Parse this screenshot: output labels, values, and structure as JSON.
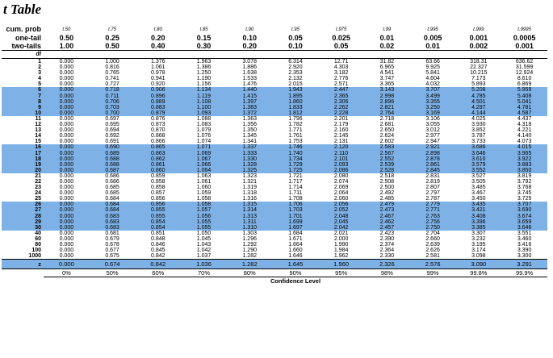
{
  "title": "t Table",
  "row_labels": {
    "cum_prob": "cum. prob",
    "one_tail": "one-tail",
    "two_tails": "two-tails",
    "df": "df",
    "z": "z"
  },
  "subscript_headers": [
    "t.50",
    "t.75",
    "t.80",
    "t.85",
    "t.90",
    "t.95",
    "t.975",
    "t.99",
    "t.995",
    "t.999",
    "t.9995"
  ],
  "one_tail": [
    "0.50",
    "0.25",
    "0.20",
    "0.15",
    "0.10",
    "0.05",
    "0.025",
    "0.01",
    "0.005",
    "0.001",
    "0.0005"
  ],
  "two_tails": [
    "1.00",
    "0.50",
    "0.40",
    "0.30",
    "0.20",
    "0.10",
    "0.05",
    "0.02",
    "0.01",
    "0.002",
    "0.001"
  ],
  "rows": [
    {
      "df": "1",
      "v": [
        "0.000",
        "1.000",
        "1.376",
        "1.963",
        "3.078",
        "6.314",
        "12.71",
        "31.82",
        "63.66",
        "318.31",
        "636.62"
      ]
    },
    {
      "df": "2",
      "v": [
        "0.000",
        "0.816",
        "1.061",
        "1.386",
        "1.886",
        "2.920",
        "4.303",
        "6.965",
        "9.925",
        "22.327",
        "31.599"
      ]
    },
    {
      "df": "3",
      "v": [
        "0.000",
        "0.765",
        "0.978",
        "1.250",
        "1.638",
        "2.353",
        "3.182",
        "4.541",
        "5.841",
        "10.215",
        "12.924"
      ]
    },
    {
      "df": "4",
      "v": [
        "0.000",
        "0.741",
        "0.941",
        "1.190",
        "1.533",
        "2.132",
        "2.776",
        "3.747",
        "4.604",
        "7.173",
        "8.610"
      ]
    },
    {
      "df": "5",
      "v": [
        "0.000",
        "0.727",
        "0.920",
        "1.156",
        "1.476",
        "2.015",
        "2.571",
        "3.365",
        "4.032",
        "5.893",
        "6.869"
      ]
    },
    {
      "df": "6",
      "v": [
        "0.000",
        "0.718",
        "0.906",
        "1.134",
        "1.440",
        "1.943",
        "2.447",
        "3.143",
        "3.707",
        "5.208",
        "5.959"
      ]
    },
    {
      "df": "7",
      "v": [
        "0.000",
        "0.711",
        "0.896",
        "1.119",
        "1.415",
        "1.895",
        "2.365",
        "2.998",
        "3.499",
        "4.785",
        "5.408"
      ]
    },
    {
      "df": "8",
      "v": [
        "0.000",
        "0.706",
        "0.889",
        "1.108",
        "1.397",
        "1.860",
        "2.306",
        "2.896",
        "3.355",
        "4.501",
        "5.041"
      ]
    },
    {
      "df": "9",
      "v": [
        "0.000",
        "0.703",
        "0.883",
        "1.100",
        "1.383",
        "1.833",
        "2.262",
        "2.821",
        "3.250",
        "4.297",
        "4.781"
      ]
    },
    {
      "df": "10",
      "v": [
        "0.000",
        "0.700",
        "0.879",
        "1.093",
        "1.372",
        "1.812",
        "2.228",
        "2.764",
        "3.169",
        "4.144",
        "4.587"
      ]
    },
    {
      "df": "11",
      "v": [
        "0.000",
        "0.697",
        "0.876",
        "1.088",
        "1.363",
        "1.796",
        "2.201",
        "2.718",
        "3.106",
        "4.025",
        "4.437"
      ]
    },
    {
      "df": "12",
      "v": [
        "0.000",
        "0.695",
        "0.873",
        "1.083",
        "1.356",
        "1.782",
        "2.179",
        "2.681",
        "3.055",
        "3.930",
        "4.318"
      ]
    },
    {
      "df": "13",
      "v": [
        "0.000",
        "0.694",
        "0.870",
        "1.079",
        "1.350",
        "1.771",
        "2.160",
        "2.650",
        "3.012",
        "3.852",
        "4.221"
      ]
    },
    {
      "df": "14",
      "v": [
        "0.000",
        "0.692",
        "0.868",
        "1.076",
        "1.345",
        "1.761",
        "2.145",
        "2.624",
        "2.977",
        "3.787",
        "4.140"
      ]
    },
    {
      "df": "15",
      "v": [
        "0.000",
        "0.691",
        "0.866",
        "1.074",
        "1.341",
        "1.753",
        "2.131",
        "2.602",
        "2.947",
        "3.733",
        "4.073"
      ]
    },
    {
      "df": "16",
      "v": [
        "0.000",
        "0.690",
        "0.865",
        "1.071",
        "1.337",
        "1.746",
        "2.120",
        "2.583",
        "2.921",
        "3.686",
        "4.015"
      ]
    },
    {
      "df": "17",
      "v": [
        "0.000",
        "0.689",
        "0.863",
        "1.069",
        "1.333",
        "1.740",
        "2.110",
        "2.567",
        "2.898",
        "3.646",
        "3.965"
      ]
    },
    {
      "df": "18",
      "v": [
        "0.000",
        "0.688",
        "0.862",
        "1.067",
        "1.330",
        "1.734",
        "2.101",
        "2.552",
        "2.878",
        "3.610",
        "3.922"
      ]
    },
    {
      "df": "19",
      "v": [
        "0.000",
        "0.688",
        "0.861",
        "1.066",
        "1.328",
        "1.729",
        "2.093",
        "2.539",
        "2.861",
        "3.579",
        "3.883"
      ]
    },
    {
      "df": "20",
      "v": [
        "0.000",
        "0.687",
        "0.860",
        "1.064",
        "1.325",
        "1.725",
        "2.086",
        "2.528",
        "2.845",
        "3.552",
        "3.850"
      ]
    },
    {
      "df": "21",
      "v": [
        "0.000",
        "0.686",
        "0.859",
        "1.063",
        "1.323",
        "1.721",
        "2.080",
        "2.518",
        "2.831",
        "3.527",
        "3.819"
      ]
    },
    {
      "df": "22",
      "v": [
        "0.000",
        "0.686",
        "0.858",
        "1.061",
        "1.321",
        "1.717",
        "2.074",
        "2.508",
        "2.819",
        "3.505",
        "3.792"
      ]
    },
    {
      "df": "23",
      "v": [
        "0.000",
        "0.685",
        "0.858",
        "1.060",
        "1.319",
        "1.714",
        "2.069",
        "2.500",
        "2.807",
        "3.485",
        "3.768"
      ]
    },
    {
      "df": "24",
      "v": [
        "0.000",
        "0.685",
        "0.857",
        "1.059",
        "1.318",
        "1.711",
        "2.064",
        "2.492",
        "2.797",
        "3.467",
        "3.745"
      ]
    },
    {
      "df": "25",
      "v": [
        "0.000",
        "0.684",
        "0.856",
        "1.058",
        "1.316",
        "1.708",
        "2.060",
        "2.485",
        "2.787",
        "3.450",
        "3.725"
      ]
    },
    {
      "df": "26",
      "v": [
        "0.000",
        "0.684",
        "0.856",
        "1.058",
        "1.315",
        "1.706",
        "2.056",
        "2.479",
        "2.779",
        "3.435",
        "3.707"
      ]
    },
    {
      "df": "27",
      "v": [
        "0.000",
        "0.684",
        "0.855",
        "1.057",
        "1.314",
        "1.703",
        "2.052",
        "2.473",
        "2.771",
        "3.421",
        "3.690"
      ]
    },
    {
      "df": "28",
      "v": [
        "0.000",
        "0.683",
        "0.855",
        "1.056",
        "1.313",
        "1.701",
        "2.048",
        "2.467",
        "2.763",
        "3.408",
        "3.674"
      ]
    },
    {
      "df": "29",
      "v": [
        "0.000",
        "0.683",
        "0.854",
        "1.055",
        "1.311",
        "1.699",
        "2.045",
        "2.462",
        "2.756",
        "3.396",
        "3.659"
      ]
    },
    {
      "df": "30",
      "v": [
        "0.000",
        "0.683",
        "0.854",
        "1.055",
        "1.310",
        "1.697",
        "2.042",
        "2.457",
        "2.750",
        "3.385",
        "3.646"
      ]
    },
    {
      "df": "40",
      "v": [
        "0.000",
        "0.681",
        "0.851",
        "1.050",
        "1.303",
        "1.684",
        "2.021",
        "2.423",
        "2.704",
        "3.307",
        "3.551"
      ]
    },
    {
      "df": "60",
      "v": [
        "0.000",
        "0.679",
        "0.848",
        "1.045",
        "1.296",
        "1.671",
        "2.000",
        "2.390",
        "2.660",
        "3.232",
        "3.460"
      ]
    },
    {
      "df": "80",
      "v": [
        "0.000",
        "0.678",
        "0.846",
        "1.043",
        "1.292",
        "1.664",
        "1.990",
        "2.374",
        "2.639",
        "3.195",
        "3.416"
      ]
    },
    {
      "df": "100",
      "v": [
        "0.000",
        "0.677",
        "0.845",
        "1.042",
        "1.290",
        "1.660",
        "1.984",
        "2.364",
        "2.626",
        "3.174",
        "3.390"
      ]
    },
    {
      "df": "1000",
      "v": [
        "0.000",
        "0.675",
        "0.842",
        "1.037",
        "1.282",
        "1.646",
        "1.962",
        "2.330",
        "2.581",
        "3.098",
        "3.300"
      ]
    }
  ],
  "z_row": [
    "0.000",
    "0.674",
    "0.842",
    "1.036",
    "1.282",
    "1.645",
    "1.960",
    "2.326",
    "2.576",
    "3.090",
    "3.291"
  ],
  "confidence": [
    "0%",
    "50%",
    "60%",
    "70%",
    "80%",
    "90%",
    "95%",
    "98%",
    "99%",
    "99.8%",
    "99.9%"
  ],
  "confidence_label": "Confidence Level",
  "colors": {
    "shade": "#7eb2e6"
  }
}
